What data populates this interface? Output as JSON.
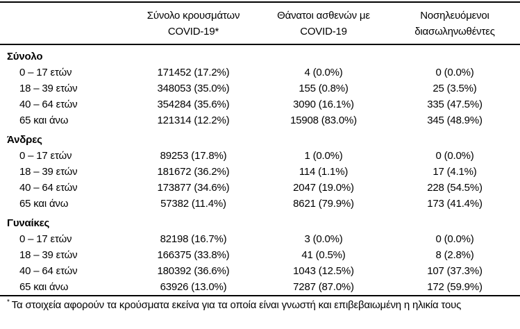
{
  "table": {
    "columns": [
      {
        "line1": "Σύνολο κρουσμάτων",
        "line2": "COVID-19*"
      },
      {
        "line1": "Θάνατοι ασθενών με",
        "line2": "COVID-19"
      },
      {
        "line1": "Νοσηλευόμενοι",
        "line2": "διασωληνωθέντες"
      }
    ],
    "groups": [
      {
        "name": "Σύνολο",
        "rows": [
          {
            "label": "0 – 17 ετών",
            "cases": "171452 (17.2%)",
            "deaths": "4 (0.0%)",
            "intubated": "0 (0.0%)"
          },
          {
            "label": "18 – 39 ετών",
            "cases": "348053 (35.0%)",
            "deaths": "155 (0.8%)",
            "intubated": "25 (3.5%)"
          },
          {
            "label": "40 – 64 ετών",
            "cases": "354284 (35.6%)",
            "deaths": "3090 (16.1%)",
            "intubated": "335 (47.5%)"
          },
          {
            "label": "65 και άνω",
            "cases": "121314 (12.2%)",
            "deaths": "15908 (83.0%)",
            "intubated": "345 (48.9%)"
          }
        ]
      },
      {
        "name": "Άνδρες",
        "rows": [
          {
            "label": "0 – 17 ετών",
            "cases": "89253 (17.8%)",
            "deaths": "1 (0.0%)",
            "intubated": "0 (0.0%)"
          },
          {
            "label": "18 – 39 ετών",
            "cases": "181672 (36.2%)",
            "deaths": "114 (1.1%)",
            "intubated": "17 (4.1%)"
          },
          {
            "label": "40 – 64 ετών",
            "cases": "173877 (34.6%)",
            "deaths": "2047 (19.0%)",
            "intubated": "228 (54.5%)"
          },
          {
            "label": "65 και άνω",
            "cases": "57382 (11.4%)",
            "deaths": "8621 (79.9%)",
            "intubated": "173 (41.4%)"
          }
        ]
      },
      {
        "name": "Γυναίκες",
        "rows": [
          {
            "label": "0 – 17 ετών",
            "cases": "82198 (16.7%)",
            "deaths": "3 (0.0%)",
            "intubated": "0 (0.0%)"
          },
          {
            "label": "18 – 39 ετών",
            "cases": "166375 (33.8%)",
            "deaths": "41 (0.5%)",
            "intubated": "8 (2.8%)"
          },
          {
            "label": "40 – 64 ετών",
            "cases": "180392 (36.6%)",
            "deaths": "1043 (12.5%)",
            "intubated": "107 (37.3%)"
          },
          {
            "label": "65 και άνω",
            "cases": "63926 (13.0%)",
            "deaths": "7287 (87.0%)",
            "intubated": "172 (59.9%)"
          }
        ]
      }
    ],
    "footnote_marker": "*",
    "footnote_text": "Τα στοιχεία αφορούν τα κρούσματα εκείνα για τα οποία είναι γνωστή και επιβεβαιωμένη η ηλικία τους"
  }
}
